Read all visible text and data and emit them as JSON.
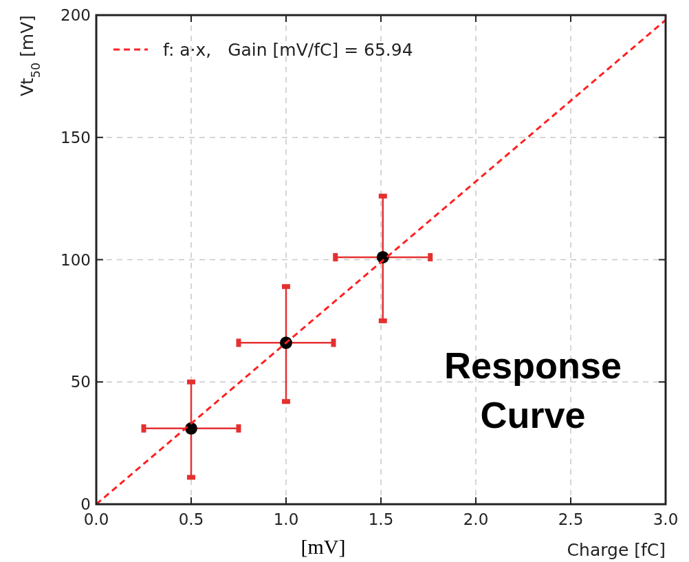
{
  "chart_data": {
    "type": "scatter",
    "xlabel": "Charge [fC]",
    "ylabel": "Vt$_{50}$ [mV]",
    "xlim": [
      0,
      3
    ],
    "ylim": [
      0,
      200
    ],
    "xticks": [
      {
        "value": 0,
        "label": "0.0"
      },
      {
        "value": 0.5,
        "label": "0.5"
      },
      {
        "value": 1,
        "label": "1.0"
      },
      {
        "value": 1.5,
        "label": "1.5"
      },
      {
        "value": 2,
        "label": "2.0"
      },
      {
        "value": 2.5,
        "label": "2.5"
      },
      {
        "value": 3,
        "label": "3.0"
      }
    ],
    "yticks": [
      0,
      50,
      100,
      150,
      200
    ],
    "grid": true,
    "legend": "top left",
    "series": [
      {
        "type": "scatter",
        "color": "#000000",
        "x": [
          0.5,
          1.0,
          1.51
        ],
        "values": [
          31,
          66,
          101
        ],
        "errors": [
          [
            11,
            50
          ],
          [
            42,
            89
          ],
          [
            75,
            126
          ]
        ],
        "xerrors": [
          0.25,
          0.25,
          0.25
        ],
        "marker": "circle"
      },
      {
        "type": "line",
        "name": "f: a·x,   Gain [mV/fC] = 65.94",
        "color": "#ff2020",
        "x": [
          0,
          3
        ],
        "values": [
          0,
          198
        ],
        "line_style": "dashed",
        "marker": "none"
      }
    ],
    "annotations": [
      "Response Curve",
      "[mV]"
    ]
  }
}
